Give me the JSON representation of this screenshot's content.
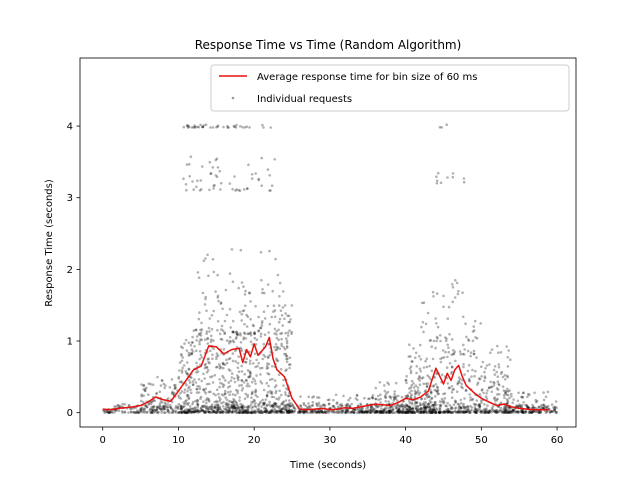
{
  "chart_data": {
    "type": "scatter",
    "title": "Response Time vs Time (Random Algorithm)",
    "xlabel": "Time (seconds)",
    "ylabel": "Response Time (seconds)",
    "xlim": [
      -3,
      62.5
    ],
    "ylim": [
      -0.2,
      4.95
    ],
    "x_ticks": [
      0,
      10,
      20,
      30,
      40,
      50,
      60
    ],
    "y_ticks": [
      0,
      1,
      2,
      3,
      4
    ],
    "grid": false,
    "legend_position": "top-right",
    "colors": {
      "line": "#e8110e",
      "points": "#000000"
    },
    "series": [
      {
        "name": "Average response time for bin size of 60 ms",
        "kind": "line",
        "x": [
          0,
          1,
          2,
          3,
          4,
          5,
          6,
          7,
          8,
          9,
          10,
          11,
          12,
          13,
          14,
          15,
          16,
          17,
          18,
          18.5,
          19,
          19.5,
          20,
          20.5,
          21,
          21.5,
          22,
          22.5,
          23,
          24,
          25,
          26,
          27,
          28,
          29,
          30,
          31,
          32,
          33,
          34,
          35,
          36,
          37,
          38,
          39,
          40,
          41,
          42,
          43,
          44,
          45,
          45.5,
          46,
          46.5,
          47,
          47.5,
          48,
          49,
          50,
          51,
          52,
          53,
          54,
          55,
          56,
          57,
          58,
          59
        ],
        "y": [
          0.05,
          0.04,
          0.06,
          0.07,
          0.08,
          0.1,
          0.15,
          0.22,
          0.18,
          0.16,
          0.3,
          0.45,
          0.6,
          0.65,
          0.93,
          0.92,
          0.82,
          0.88,
          0.9,
          0.7,
          0.88,
          0.78,
          0.96,
          0.8,
          0.86,
          0.92,
          1.05,
          0.75,
          0.6,
          0.5,
          0.2,
          0.05,
          0.04,
          0.05,
          0.06,
          0.04,
          0.05,
          0.07,
          0.06,
          0.08,
          0.1,
          0.12,
          0.11,
          0.1,
          0.14,
          0.2,
          0.18,
          0.22,
          0.3,
          0.62,
          0.4,
          0.55,
          0.45,
          0.6,
          0.66,
          0.5,
          0.38,
          0.28,
          0.2,
          0.15,
          0.1,
          0.12,
          0.08,
          0.06,
          0.05,
          0.04,
          0.04,
          0.04
        ]
      },
      {
        "name": "Individual requests",
        "kind": "scatter",
        "clusters": [
          {
            "x_range": [
              0,
              60
            ],
            "y_range": [
              0,
              0.12
            ],
            "count": 900
          },
          {
            "x_range": [
              5,
              10
            ],
            "y_range": [
              0.05,
              0.5
            ],
            "count": 90
          },
          {
            "x_range": [
              10,
              25
            ],
            "y_range": [
              0,
              1.1
            ],
            "count": 700
          },
          {
            "x_range": [
              12,
              25
            ],
            "y_range": [
              1.1,
              1.7
            ],
            "count": 130
          },
          {
            "x_range": [
              12,
              24
            ],
            "y_range": [
              1.7,
              2.3
            ],
            "count": 25
          },
          {
            "x_range": [
              10.5,
              23
            ],
            "y_range": [
              3.1,
              3.6
            ],
            "count": 55
          },
          {
            "x_range": [
              10.5,
              22.5
            ],
            "y_range": [
              3.98,
              4.02
            ],
            "count": 40
          },
          {
            "x_range": [
              36,
              44
            ],
            "y_range": [
              0,
              0.45
            ],
            "count": 150
          },
          {
            "x_range": [
              40,
              54
            ],
            "y_range": [
              0,
              0.95
            ],
            "count": 420
          },
          {
            "x_range": [
              42,
              50
            ],
            "y_range": [
              1.0,
              1.55
            ],
            "count": 40
          },
          {
            "x_range": [
              43.5,
              48
            ],
            "y_range": [
              1.6,
              1.9
            ],
            "count": 12
          },
          {
            "x_range": [
              44,
              48.5
            ],
            "y_range": [
              3.2,
              3.35
            ],
            "count": 10
          },
          {
            "x_range": [
              44.5,
              46
            ],
            "y_range": [
              3.98,
              4.02
            ],
            "count": 3
          },
          {
            "x_range": [
              26,
              40
            ],
            "y_range": [
              0,
              0.25
            ],
            "count": 160
          },
          {
            "x_range": [
              53,
              60
            ],
            "y_range": [
              0,
              0.3
            ],
            "count": 80
          }
        ]
      }
    ]
  }
}
